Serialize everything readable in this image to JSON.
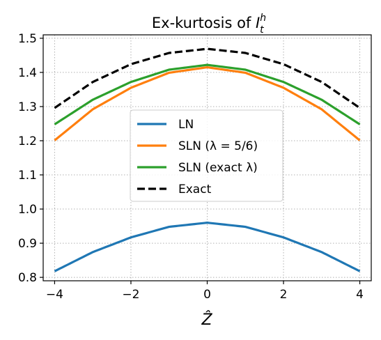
{
  "chart_data": {
    "type": "line",
    "title_main": "Ex-kurtosis of ",
    "title_var": "I",
    "title_sup": "h",
    "title_sub": "t",
    "xlabel": "Ẑ",
    "ylabel": "",
    "xlim": [
      -4.3,
      4.3
    ],
    "ylim": [
      0.79,
      1.51
    ],
    "grid": true,
    "legend_position": "center",
    "xticks": [
      -4,
      -2,
      0,
      2,
      4
    ],
    "xtick_labels": [
      "−4",
      "−2",
      "0",
      "2",
      "4"
    ],
    "yticks": [
      0.8,
      0.9,
      1.0,
      1.1,
      1.2,
      1.3,
      1.4,
      1.5
    ],
    "ytick_labels": [
      "0.8",
      "0.9",
      "1.0",
      "1.1",
      "1.2",
      "1.3",
      "1.4",
      "1.5"
    ],
    "series": [
      {
        "name": "LN",
        "color": "#1f77b4",
        "dash": "solid",
        "x": [
          -4,
          -3,
          -2,
          -1,
          0,
          1,
          2,
          3,
          4
        ],
        "y": [
          0.818,
          0.874,
          0.917,
          0.948,
          0.96,
          0.948,
          0.917,
          0.874,
          0.818
        ]
      },
      {
        "name": "SLN (λ = 5/6)",
        "color": "#ff7f0e",
        "dash": "solid",
        "x": [
          -4,
          -3,
          -2,
          -1,
          0,
          1,
          2,
          3,
          4
        ],
        "y": [
          1.201,
          1.292,
          1.355,
          1.399,
          1.415,
          1.399,
          1.355,
          1.292,
          1.201
        ]
      },
      {
        "name": "SLN (exact λ)",
        "color": "#2ca02c",
        "dash": "solid",
        "x": [
          -4,
          -3,
          -2,
          -1,
          0,
          1,
          2,
          3,
          4
        ],
        "y": [
          1.248,
          1.32,
          1.372,
          1.408,
          1.422,
          1.408,
          1.372,
          1.32,
          1.248
        ]
      },
      {
        "name": "Exact",
        "color": "#000000",
        "dash": "dashed",
        "x": [
          -4,
          -3,
          -2,
          -1,
          0,
          1,
          2,
          3,
          4
        ],
        "y": [
          1.296,
          1.372,
          1.424,
          1.457,
          1.469,
          1.457,
          1.424,
          1.372,
          1.296
        ]
      }
    ]
  }
}
